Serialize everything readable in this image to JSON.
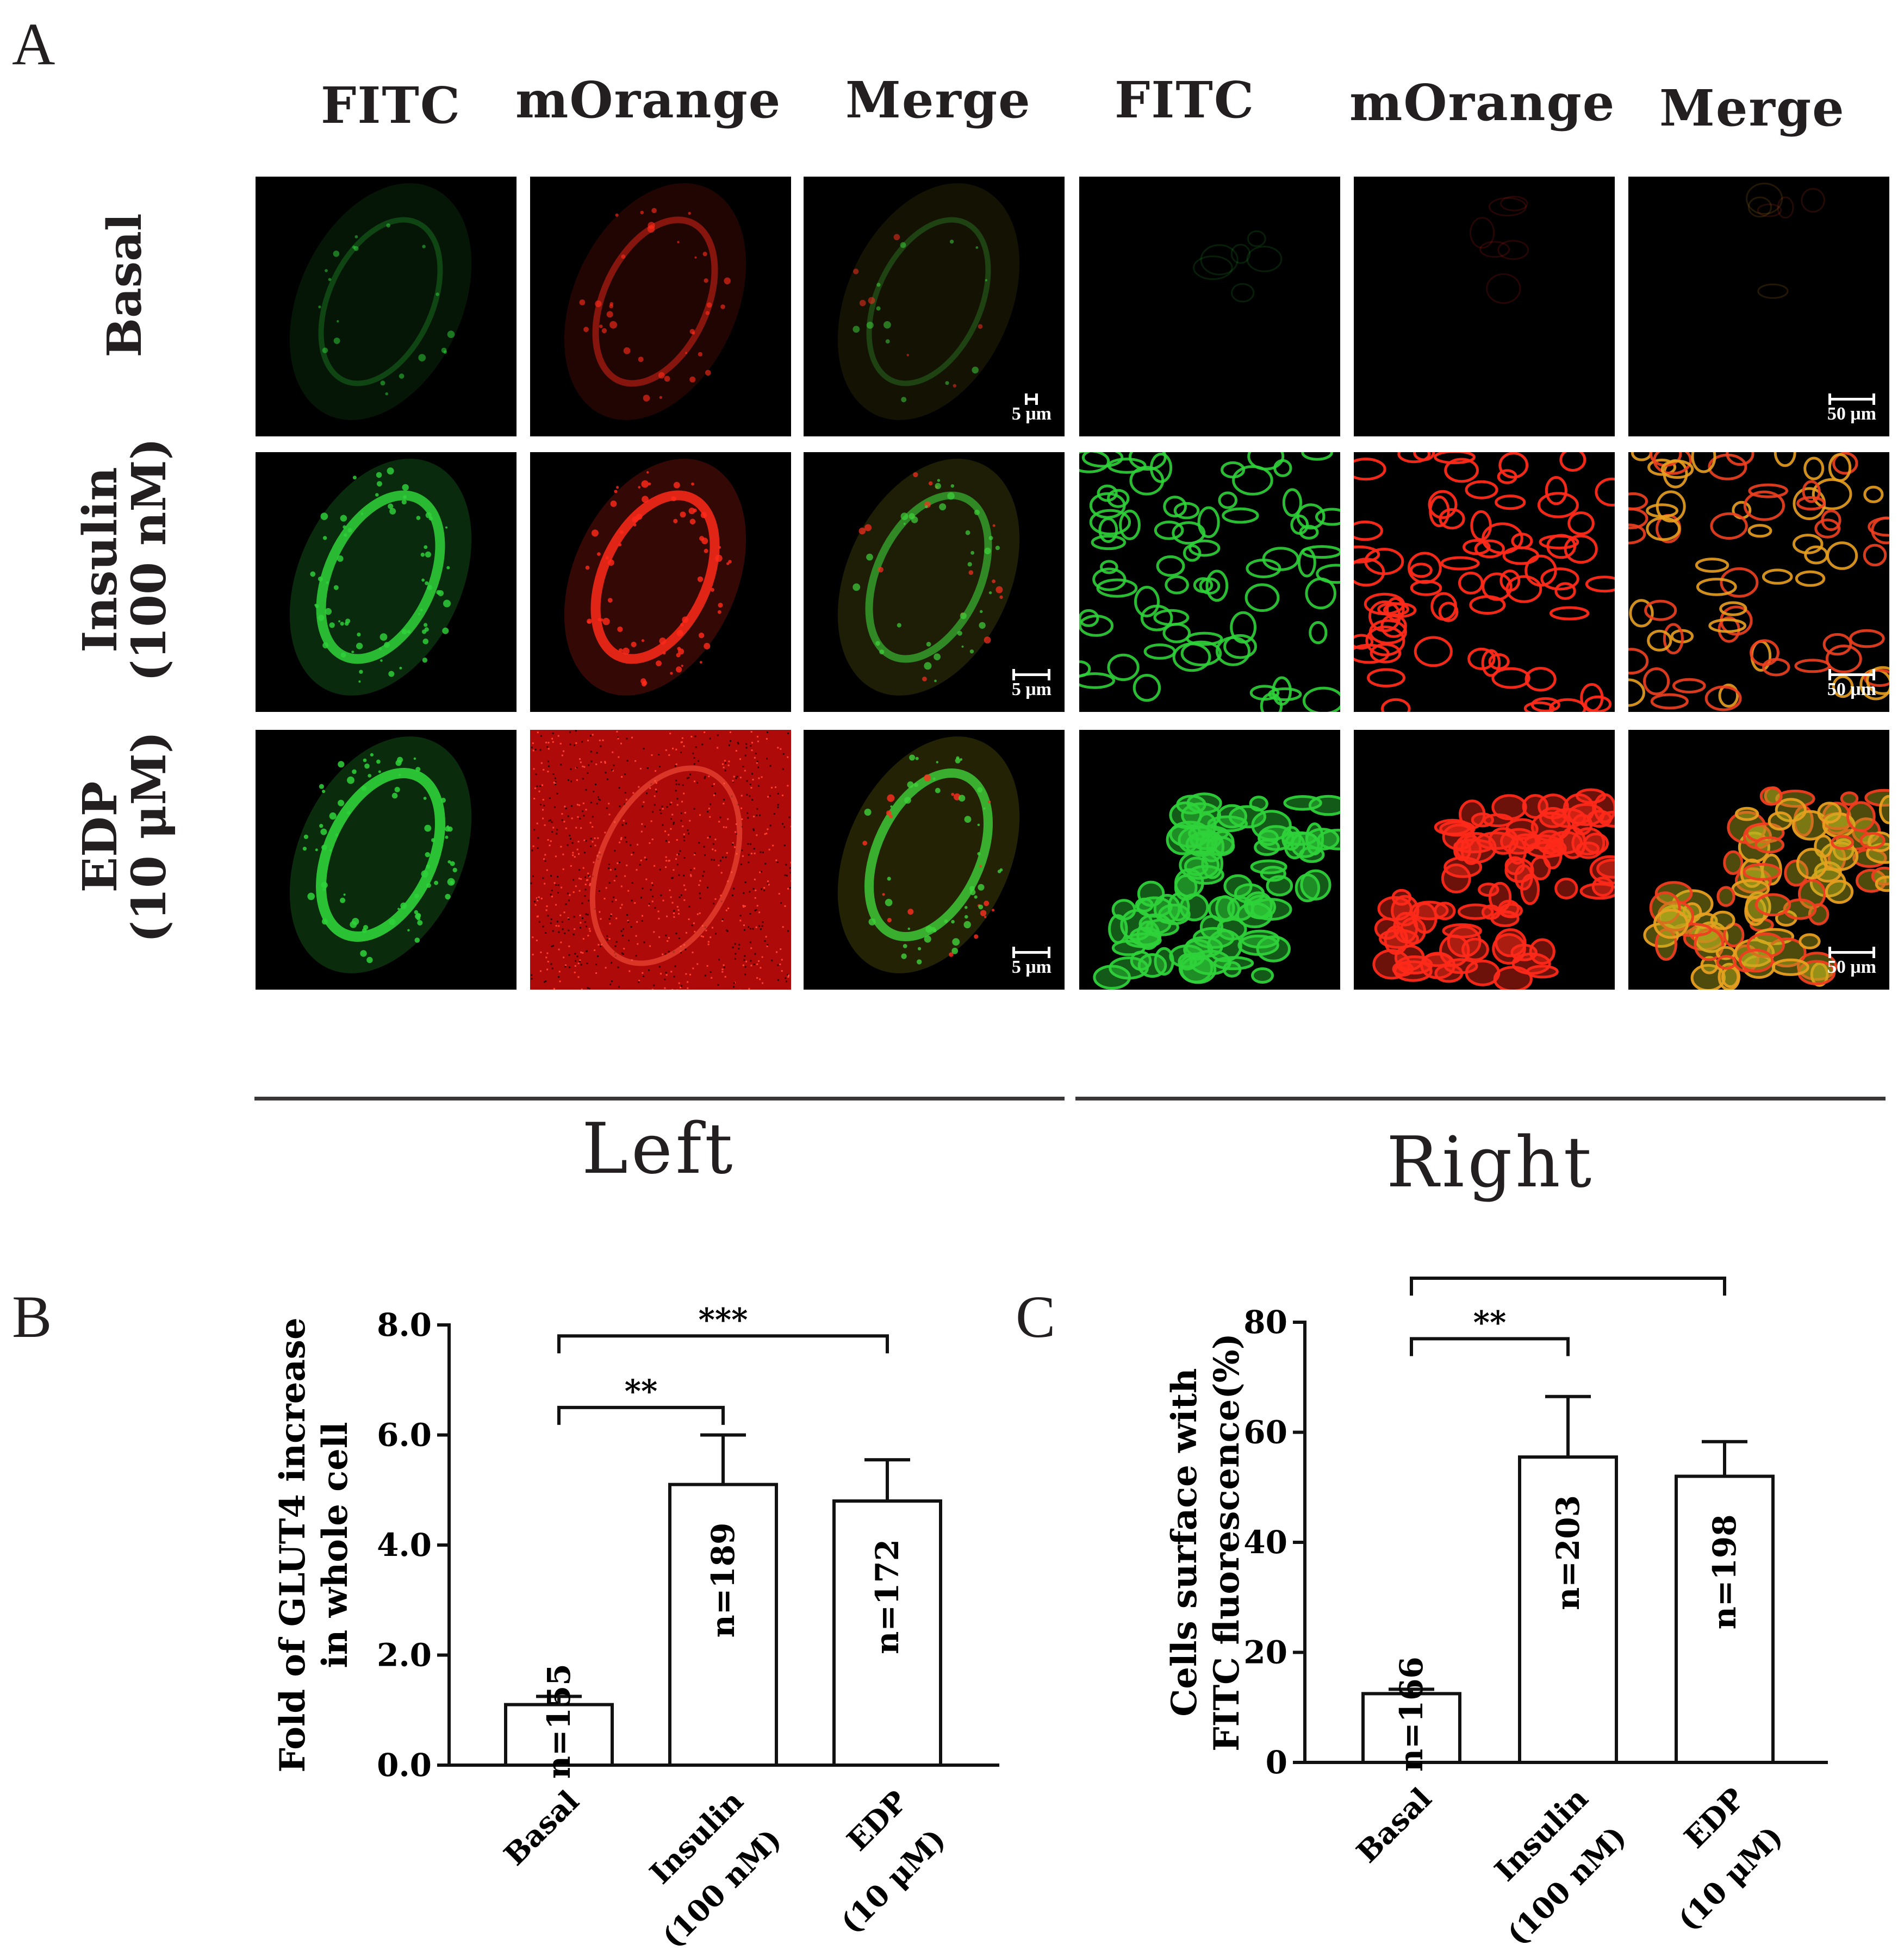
{
  "panel_letters": {
    "a": "A",
    "b": "B",
    "c": "C"
  },
  "column_headers": [
    "FITC",
    "mOrange",
    "Merge",
    "FITC",
    "mOrange",
    "Merge"
  ],
  "row_headers": [
    {
      "line1": "Basal",
      "line2": ""
    },
    {
      "line1": "Insulin",
      "line2": "(100 nM)"
    },
    {
      "line1": "EDP",
      "line2": "(10 μM)"
    }
  ],
  "scale_labels": {
    "left": "5 μm",
    "right": "50 μm"
  },
  "group_labels": {
    "left": "Left",
    "right": "Right"
  },
  "micrographs": [
    {
      "row": 0,
      "channel": "green",
      "style": "single-cell",
      "intensity": 0.25
    },
    {
      "row": 0,
      "channel": "red",
      "style": "single-cell",
      "intensity": 0.45
    },
    {
      "row": 0,
      "channel": "merge",
      "style": "single-cell",
      "intensity": 0.25,
      "scale": "left"
    },
    {
      "row": 0,
      "channel": "green",
      "style": "sparse",
      "intensity": 0.15
    },
    {
      "row": 0,
      "channel": "red",
      "style": "sparse",
      "intensity": 0.15
    },
    {
      "row": 0,
      "channel": "merge",
      "style": "sparse",
      "intensity": 0.15,
      "scale": "right"
    },
    {
      "row": 1,
      "channel": "green",
      "style": "single-cell",
      "intensity": 0.85
    },
    {
      "row": 1,
      "channel": "red",
      "style": "single-cell",
      "intensity": 0.85
    },
    {
      "row": 1,
      "channel": "merge",
      "style": "single-cell",
      "intensity": 0.6,
      "scale": "left"
    },
    {
      "row": 1,
      "channel": "green",
      "style": "network",
      "intensity": 0.9
    },
    {
      "row": 1,
      "channel": "red",
      "style": "network",
      "intensity": 0.95
    },
    {
      "row": 1,
      "channel": "merge",
      "style": "network",
      "intensity": 0.9,
      "scale": "right"
    },
    {
      "row": 2,
      "channel": "green",
      "style": "single-cell",
      "intensity": 0.9
    },
    {
      "row": 2,
      "channel": "red",
      "style": "noise",
      "intensity": 0.9
    },
    {
      "row": 2,
      "channel": "merge",
      "style": "single-cell",
      "intensity": 0.8,
      "scale": "left"
    },
    {
      "row": 2,
      "channel": "green",
      "style": "cluster",
      "intensity": 0.95
    },
    {
      "row": 2,
      "channel": "red",
      "style": "cluster",
      "intensity": 0.95
    },
    {
      "row": 2,
      "channel": "merge",
      "style": "cluster",
      "intensity": 0.95,
      "scale": "right"
    }
  ],
  "chart_data": [
    {
      "type": "bar",
      "panel": "B",
      "ylabel_line1": "Fold of GLUT4 increase",
      "ylabel_line2": "in whole cell",
      "ylim": [
        0,
        8
      ],
      "yticks": [
        0,
        2,
        4,
        6,
        8
      ],
      "ytick_labels": [
        "0.0",
        "2.0",
        "4.0",
        "6.0",
        "8.0"
      ],
      "categories": [
        {
          "line1": "Basal",
          "line2": ""
        },
        {
          "line1": "Insulin",
          "line2": "(100 nM)"
        },
        {
          "line1": "EDP",
          "line2": "(10 μM)"
        }
      ],
      "values": [
        1.1,
        5.1,
        4.8
      ],
      "errors": [
        0.15,
        0.9,
        0.75
      ],
      "n_labels": [
        "n=155",
        "n=189",
        "n=172"
      ],
      "significance": [
        {
          "from": 0,
          "to": 1,
          "y": 6.5,
          "label": "**"
        },
        {
          "from": 0,
          "to": 2,
          "y": 7.8,
          "label": "***"
        }
      ]
    },
    {
      "type": "bar",
      "panel": "C",
      "ylabel_line1": "Cells surface with",
      "ylabel_line2": "FITC fluorescence(%)",
      "ylim": [
        0,
        80
      ],
      "yticks": [
        0,
        20,
        40,
        60,
        80
      ],
      "ytick_labels": [
        "0",
        "20",
        "40",
        "60",
        "80"
      ],
      "categories": [
        {
          "line1": "Basal",
          "line2": ""
        },
        {
          "line1": "Insulin",
          "line2": "(100 nM)"
        },
        {
          "line1": "EDP",
          "line2": "(10 μM)"
        }
      ],
      "values": [
        12.5,
        55.5,
        52
      ],
      "errors": [
        0.8,
        11,
        6.3
      ],
      "n_labels": [
        "n=166",
        "n=203",
        "n=198"
      ],
      "significance": [
        {
          "from": 0,
          "to": 1,
          "y": 77,
          "label": "**"
        },
        {
          "from": 0,
          "to": 2,
          "y": 88,
          "label": "***"
        }
      ]
    }
  ]
}
